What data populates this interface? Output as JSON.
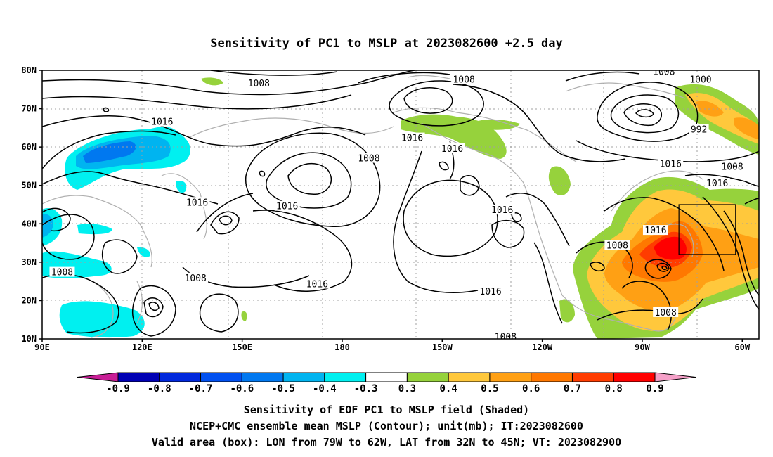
{
  "title": "Sensitivity of PC1 to MSLP at 2023082600 +2.5 day",
  "map": {
    "lon_range": [
      90,
      305
    ],
    "lat_range": [
      10,
      80
    ],
    "lat_ticks": [
      {
        "lat": 80,
        "label": "80N"
      },
      {
        "lat": 70,
        "label": "70N"
      },
      {
        "lat": 60,
        "label": "60N"
      },
      {
        "lat": 50,
        "label": "50N"
      },
      {
        "lat": 40,
        "label": "40N"
      },
      {
        "lat": 30,
        "label": "30N"
      },
      {
        "lat": 20,
        "label": "20N"
      },
      {
        "lat": 10,
        "label": "10N"
      }
    ],
    "lon_ticks": [
      {
        "lon": 90,
        "label": "90E"
      },
      {
        "lon": 120,
        "label": "120E"
      },
      {
        "lon": 150,
        "label": "150E"
      },
      {
        "lon": 180,
        "label": "180"
      },
      {
        "lon": 210,
        "label": "150W"
      },
      {
        "lon": 240,
        "label": "120W"
      },
      {
        "lon": 270,
        "label": "90W"
      },
      {
        "lon": 300,
        "label": "60W"
      }
    ],
    "valid_box": {
      "lon_west": 281,
      "lon_east": 298,
      "lat_south": 32,
      "lat_north": 45
    }
  },
  "contour_labels": [
    {
      "lon": 155,
      "lat": 76.5,
      "text": "1008"
    },
    {
      "lon": 126,
      "lat": 66.5,
      "text": "1016"
    },
    {
      "lon": 188,
      "lat": 57,
      "text": "1008"
    },
    {
      "lon": 201,
      "lat": 62.3,
      "text": "1016"
    },
    {
      "lon": 213,
      "lat": 59.5,
      "text": "1016"
    },
    {
      "lon": 216.5,
      "lat": 77.5,
      "text": "1008"
    },
    {
      "lon": 276.5,
      "lat": 79.5,
      "text": "1008"
    },
    {
      "lon": 287.5,
      "lat": 77.5,
      "text": "1000"
    },
    {
      "lon": 287,
      "lat": 64.5,
      "text": "992"
    },
    {
      "lon": 278.5,
      "lat": 55.5,
      "text": "1016"
    },
    {
      "lon": 297,
      "lat": 54.8,
      "text": "1008"
    },
    {
      "lon": 292.5,
      "lat": 50.5,
      "text": "1016"
    },
    {
      "lon": 136.5,
      "lat": 45.5,
      "text": "1016"
    },
    {
      "lon": 163.5,
      "lat": 44.5,
      "text": "1016"
    },
    {
      "lon": 228,
      "lat": 43.5,
      "text": "1016"
    },
    {
      "lon": 274,
      "lat": 38.2,
      "text": "1016"
    },
    {
      "lon": 262.5,
      "lat": 34.3,
      "text": "1008"
    },
    {
      "lon": 96,
      "lat": 27.3,
      "text": "1008"
    },
    {
      "lon": 136,
      "lat": 25.8,
      "text": "1008"
    },
    {
      "lon": 172.5,
      "lat": 24.2,
      "text": "1016"
    },
    {
      "lon": 224.5,
      "lat": 22.3,
      "text": "1016"
    },
    {
      "lon": 229,
      "lat": 10.5,
      "text": "1008"
    },
    {
      "lon": 277,
      "lat": 16.8,
      "text": "1008"
    }
  ],
  "colorbar": {
    "ticks": [
      "-0.9",
      "-0.8",
      "-0.7",
      "-0.6",
      "-0.5",
      "-0.4",
      "-0.3",
      "0.3",
      "0.4",
      "0.5",
      "0.6",
      "0.7",
      "0.8",
      "0.9"
    ],
    "colors": {
      "low_end": "#c81e96",
      "high_end": "#f5a0c8",
      "segments": [
        "#0000b4",
        "#0028dc",
        "#0050f0",
        "#0078f0",
        "#00b4f0",
        "#00f0f0",
        "#ffffff",
        "#96d23c",
        "#ffc83c",
        "#ffa014",
        "#ff7800",
        "#ff3c00",
        "#ff0000"
      ]
    }
  },
  "captions": [
    "Sensitivity of EOF PC1 to MSLP field (Shaded)",
    "NCEP+CMC ensemble mean MSLP (Contour); unit(mb); IT:2023082600",
    "Valid area (box): LON from 79W to 62W, LAT from 32N to 45N; VT: 2023082900"
  ]
}
